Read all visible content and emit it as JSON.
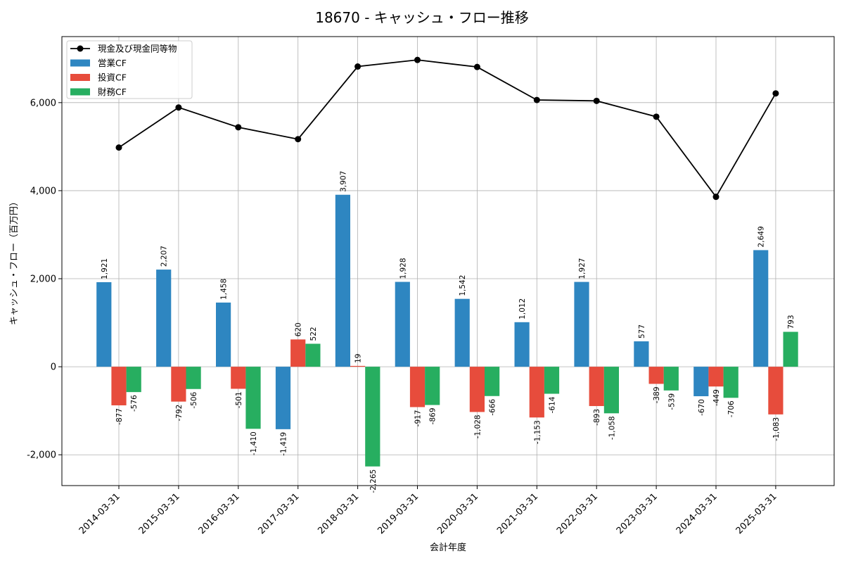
{
  "chart_data": {
    "type": "bar",
    "title": "18670 - キャッシュ・フロー推移",
    "xlabel": "会計年度",
    "ylabel": "キャッシュ・フロー（百万円）",
    "categories": [
      "2014-03-31",
      "2015-03-31",
      "2016-03-31",
      "2017-03-31",
      "2018-03-31",
      "2019-03-31",
      "2020-03-31",
      "2021-03-31",
      "2022-03-31",
      "2023-03-31",
      "2024-03-31",
      "2025-03-31"
    ],
    "ylim": [
      -2700,
      7500
    ],
    "yticks": [
      -2000,
      0,
      2000,
      4000,
      6000
    ],
    "ytick_labels": [
      "-2,000",
      "0",
      "2,000",
      "4,000",
      "6,000"
    ],
    "grid": true,
    "legend_position": "top-left",
    "series": [
      {
        "name": "営業CF",
        "kind": "bar",
        "color": "#2e86c1",
        "values": [
          1921,
          2207,
          1458,
          -1419,
          3907,
          1928,
          1542,
          1012,
          1927,
          577,
          -670,
          2649
        ],
        "labels": [
          "1,921",
          "2,207",
          "1,458",
          "-1,419",
          "3,907",
          "1,928",
          "1,542",
          "1,012",
          "1,927",
          "577",
          "-670",
          "2,649"
        ]
      },
      {
        "name": "投資CF",
        "kind": "bar",
        "color": "#e74c3c",
        "values": [
          -877,
          -792,
          -501,
          620,
          19,
          -917,
          -1028,
          -1153,
          -893,
          -389,
          -449,
          -1083
        ],
        "labels": [
          "-877",
          "-792",
          "-501",
          "620",
          "19",
          "-917",
          "-1,028",
          "-1,153",
          "-893",
          "-389",
          "-449",
          "-1,083"
        ]
      },
      {
        "name": "財務CF",
        "kind": "bar",
        "color": "#27ae60",
        "values": [
          -576,
          -506,
          -1410,
          522,
          -2265,
          -869,
          -666,
          -614,
          -1058,
          -539,
          -706,
          793
        ],
        "labels": [
          "-576",
          "-506",
          "-1,410",
          "522",
          "-2,265",
          "-869",
          "-666",
          "-614",
          "-1,058",
          "-539",
          "-706",
          "793"
        ]
      },
      {
        "name": "現金及び現金同等物",
        "kind": "line",
        "color": "#000000",
        "values": [
          4980,
          5890,
          5440,
          5170,
          6820,
          6970,
          6810,
          6060,
          6040,
          5680,
          3860,
          6210
        ]
      }
    ]
  }
}
